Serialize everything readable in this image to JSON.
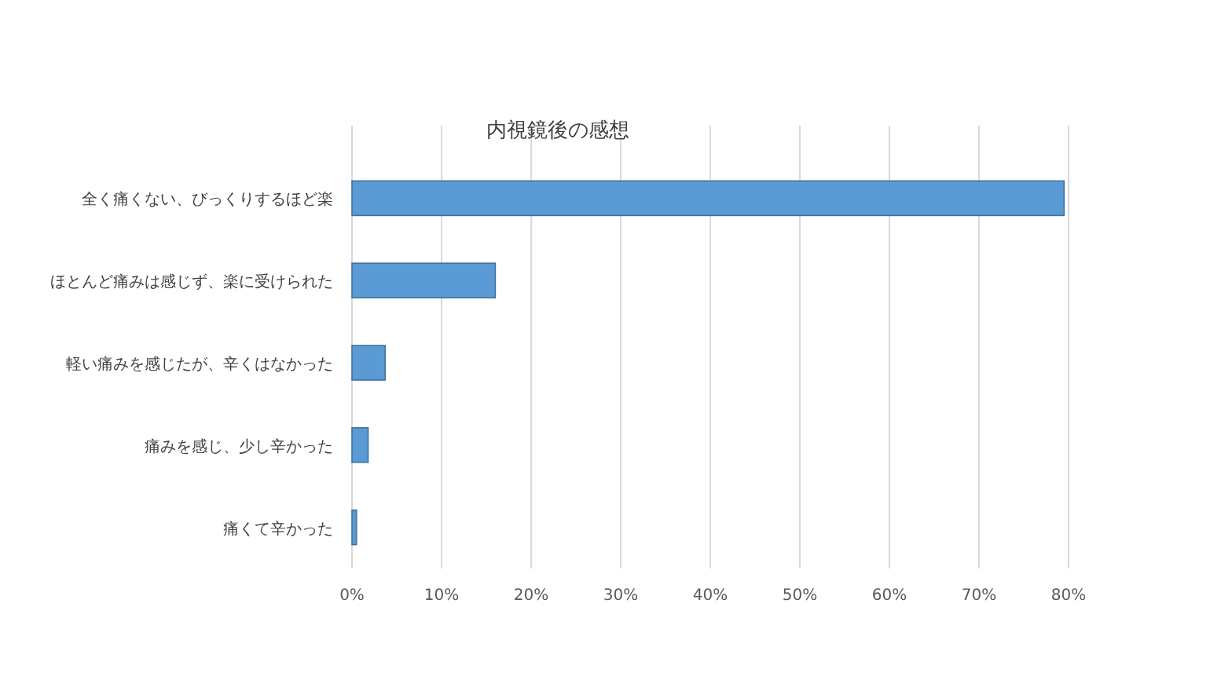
{
  "chart_data": {
    "type": "bar",
    "orientation": "horizontal",
    "title": "内視鏡後の感想",
    "categories": [
      "全く痛くない、びっくりするほど楽",
      "ほとんど痛みは感じず、楽に受けられた",
      "軽い痛みを感じたが、辛くはなかった",
      "痛みを感じ、少し辛かった",
      "痛くて辛かった"
    ],
    "values": [
      79.5,
      16,
      3.7,
      1.8,
      0.5
    ],
    "color": "#5b9bd5",
    "xlim": [
      0,
      80
    ],
    "xticks": [
      {
        "value": 0,
        "label": "0%"
      },
      {
        "value": 10,
        "label": "10%"
      },
      {
        "value": 20,
        "label": "20%"
      },
      {
        "value": 30,
        "label": "30%"
      },
      {
        "value": 40,
        "label": "40%"
      },
      {
        "value": 50,
        "label": "50%"
      },
      {
        "value": 60,
        "label": "60%"
      },
      {
        "value": 70,
        "label": "70%"
      },
      {
        "value": 80,
        "label": "80%"
      }
    ],
    "grid": "x"
  }
}
